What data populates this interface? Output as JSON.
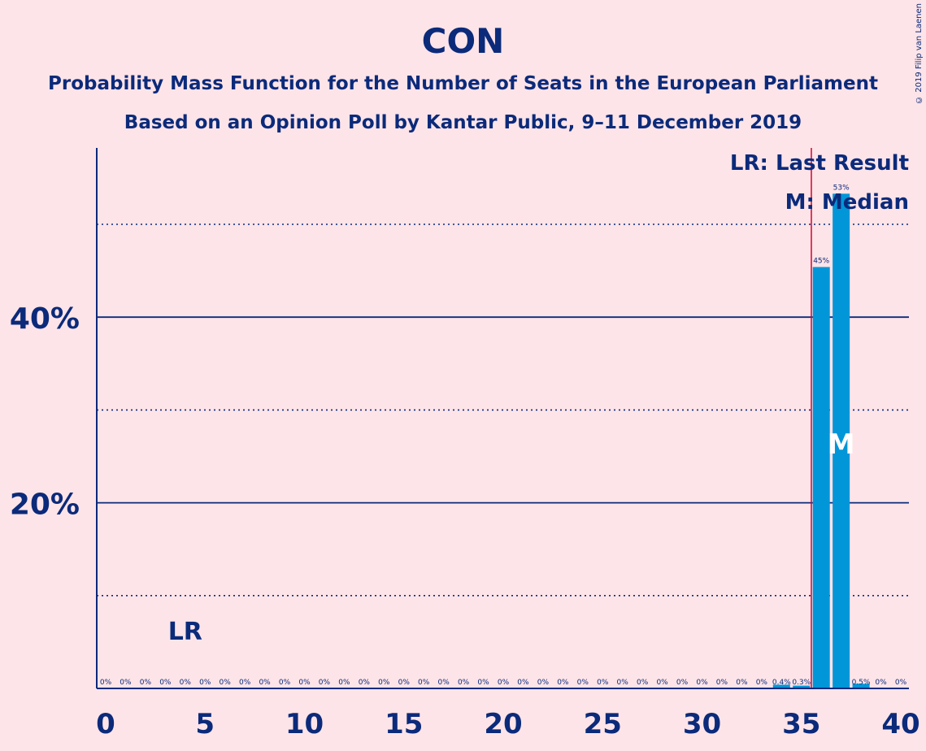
{
  "header": {
    "title": "CON",
    "subtitle": "Probability Mass Function for the Number of Seats in the European Parliament",
    "subtitle2": "Based on an Opinion Poll by Kantar Public, 9–11 December 2019",
    "credit": "© 2019 Filip van Laenen"
  },
  "legend": {
    "lr": "LR: Last Result",
    "median": "M: Median"
  },
  "markers": {
    "lr_label": "LR",
    "median_label": "M"
  },
  "colors": {
    "background": "#fde4e8",
    "bar": "#0096d8",
    "text": "#0b2a7a",
    "last_result_line": "#d9002b"
  },
  "chart_data": {
    "type": "bar",
    "x": [
      0,
      1,
      2,
      3,
      4,
      5,
      6,
      7,
      8,
      9,
      10,
      11,
      12,
      13,
      14,
      15,
      16,
      17,
      18,
      19,
      20,
      21,
      22,
      23,
      24,
      25,
      26,
      27,
      28,
      29,
      30,
      31,
      32,
      33,
      34,
      35,
      36,
      37,
      38,
      39,
      40
    ],
    "values": [
      0,
      0,
      0,
      0,
      0,
      0,
      0,
      0,
      0,
      0,
      0,
      0,
      0,
      0,
      0,
      0,
      0,
      0,
      0,
      0,
      0,
      0,
      0,
      0,
      0,
      0,
      0,
      0,
      0,
      0,
      0,
      0,
      0,
      0,
      0.4,
      0.3,
      45.4,
      53.3,
      0.5,
      0,
      0
    ],
    "data_labels": [
      "0%",
      "0%",
      "0%",
      "0%",
      "0%",
      "0%",
      "0%",
      "0%",
      "0%",
      "0%",
      "0%",
      "0%",
      "0%",
      "0%",
      "0%",
      "0%",
      "0%",
      "0%",
      "0%",
      "0%",
      "0%",
      "0%",
      "0%",
      "0%",
      "0%",
      "0%",
      "0%",
      "0%",
      "0%",
      "0%",
      "0%",
      "0%",
      "0%",
      "0%",
      "0.4%",
      "0.3%",
      "45%",
      "53%",
      "0.5%",
      "0%",
      "0%"
    ],
    "x_ticks": [
      0,
      5,
      10,
      15,
      20,
      25,
      30,
      35,
      40
    ],
    "x_tick_labels": [
      "0",
      "5",
      "10",
      "15",
      "20",
      "25",
      "30",
      "35",
      "40"
    ],
    "y_ticks": [
      20,
      40
    ],
    "y_tick_labels": [
      "20%",
      "40%"
    ],
    "y_dotted_gridlines": [
      10,
      30,
      50
    ],
    "ylim": [
      0,
      58
    ],
    "xlim": [
      -0.5,
      40.5
    ],
    "last_result": 4,
    "median": 37,
    "threshold_line": 35.5,
    "legend_position": "top-right"
  }
}
